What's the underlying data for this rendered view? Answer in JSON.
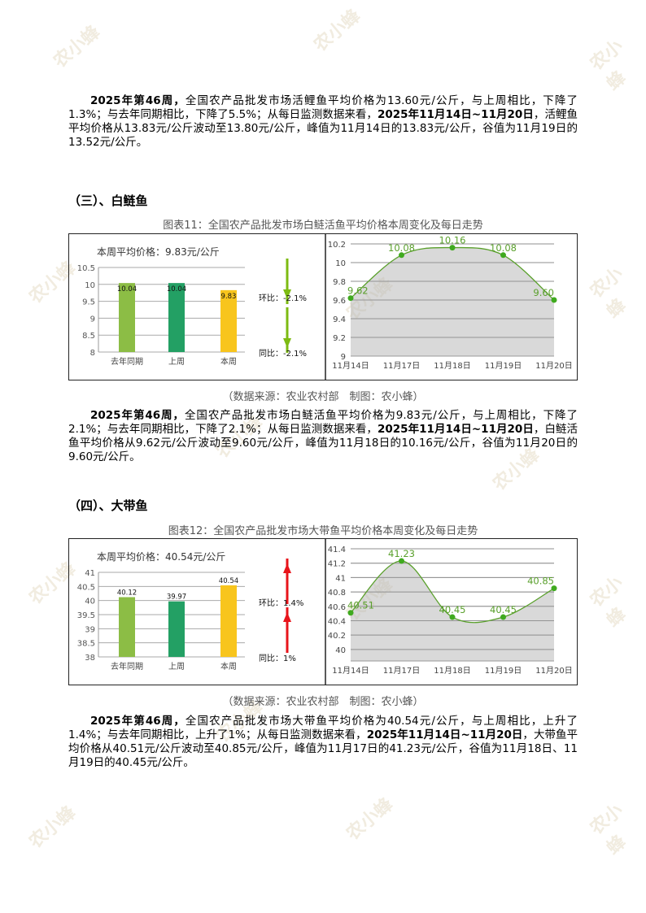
{
  "paragraphs": [
    [
      {
        "b": true,
        "t": "2025年第46周，"
      },
      {
        "t": "全国农产品批发市场活鲤鱼平均价格为13.60元/公斤，与上周相比，下降了1.3%；与去年同期相比，下降了5.5%；从每日监测数据来看，"
      },
      {
        "b": true,
        "t": "2025年11月14日~11月20日"
      },
      {
        "t": "，活鲤鱼平均价格从13.83元/公斤波动至13.80元/公斤，峰值为11月14日的13.83元/公斤，谷值为11月19日的13.52元/公斤。"
      }
    ],
    [
      {
        "b": true,
        "t": "2025年第46周，"
      },
      {
        "t": "全国农产品批发市场白鲢活鱼平均价格为9.83元/公斤，与上周相比，下降了2.1%；与去年同期相比，下降了2.1%；从每日监测数据来看，"
      },
      {
        "b": true,
        "t": "2025年11月14日~11月20日"
      },
      {
        "t": "，白鲢活鱼平均价格从9.62元/公斤波动至9.60元/公斤，峰值为11月18日的10.16元/公斤，谷值为11月20日的9.60元/公斤。"
      }
    ],
    [
      {
        "b": true,
        "t": "2025年第46周，"
      },
      {
        "t": "全国农产品批发市场大带鱼平均价格为40.54元/公斤，与上周相比，上升了1.4%；与去年同期相比，上升了1%；从每日监测数据来看，"
      },
      {
        "b": true,
        "t": "2025年11月14日~11月20日"
      },
      {
        "t": "，大带鱼平均价格从40.51元/公斤波动至40.85元/公斤，峰值为11月17日的41.23元/公斤，谷值为11月18日、11月19日的40.45元/公斤。"
      }
    ]
  ],
  "sections": [
    {
      "heading": "（三）、白鲢鱼",
      "caption": "图表11：全国农产品批发市场白鲢活鱼平均价格本周变化及每日走势",
      "source": "（数据来源：农业农村部　制图：农小蜂）"
    },
    {
      "heading": "（四）、大带鱼",
      "caption": "图表12：全国农产品批发市场大带鱼平均价格本周变化及每日走势",
      "source": "（数据来源：农业农村部　制图：农小蜂）"
    }
  ],
  "watermark": "农小蜂 BEEDATA",
  "chart_data": [
    {
      "type": "bar",
      "title": "本周平均价格：9.83元/公斤",
      "categories": [
        "去年同期",
        "上周",
        "本周"
      ],
      "values": [
        10.04,
        10.04,
        9.83
      ],
      "labels": [
        "10.04",
        "10.04",
        "9.83"
      ],
      "colors": [
        "#8cbd45",
        "#23a064",
        "#f8c51d"
      ],
      "ylim": [
        8,
        10.5
      ],
      "yticks": [
        "8",
        "8.5",
        "9",
        "9.5",
        "10",
        "10.5"
      ],
      "changes": [
        {
          "label": "环比：-2.1%",
          "dir": "down"
        },
        {
          "label": "同比：-2.1%",
          "dir": "down"
        }
      ],
      "arrow_color": "#7dbb12",
      "line": {
        "type": "area",
        "x": [
          "11月14日",
          "11月17日",
          "11月18日",
          "11月19日",
          "11月20日"
        ],
        "values": [
          9.62,
          10.08,
          10.16,
          10.08,
          9.6
        ],
        "labels": [
          "9.62",
          "10.08",
          "10.16",
          "10.08",
          "9.60"
        ],
        "ylim": [
          9,
          10.2
        ],
        "yticks": [
          "9",
          "9.2",
          "9.4",
          "9.6",
          "9.8",
          "10",
          "10.2"
        ],
        "color": "#5aa02c"
      }
    },
    {
      "type": "bar",
      "title": "本周平均价格：40.54元/公斤",
      "categories": [
        "去年同期",
        "上周",
        "本周"
      ],
      "values": [
        40.12,
        39.97,
        40.54
      ],
      "labels": [
        "40.12",
        "39.97",
        "40.54"
      ],
      "colors": [
        "#8cbd45",
        "#23a064",
        "#f8c51d"
      ],
      "ylim": [
        38,
        41
      ],
      "yticks": [
        "38",
        "38.5",
        "39",
        "39.5",
        "40",
        "40.5",
        "41"
      ],
      "changes": [
        {
          "label": "环比：1.4%",
          "dir": "up"
        },
        {
          "label": "同比：1%",
          "dir": "up"
        }
      ],
      "arrow_color": "#e8141b",
      "line": {
        "type": "area",
        "x": [
          "11月14日",
          "11月17日",
          "11月18日",
          "11月19日",
          "11月20日"
        ],
        "values": [
          40.51,
          41.23,
          40.45,
          40.45,
          40.85
        ],
        "labels": [
          "40.51",
          "41.23",
          "40.45",
          "40.45",
          "40.85"
        ],
        "ylim": [
          39.84,
          41.4
        ],
        "yticks": [
          "40",
          "40.2",
          "40.4",
          "40.6",
          "40.8",
          "41",
          "41.2",
          "41.4"
        ],
        "color": "#5aa02c"
      }
    }
  ]
}
